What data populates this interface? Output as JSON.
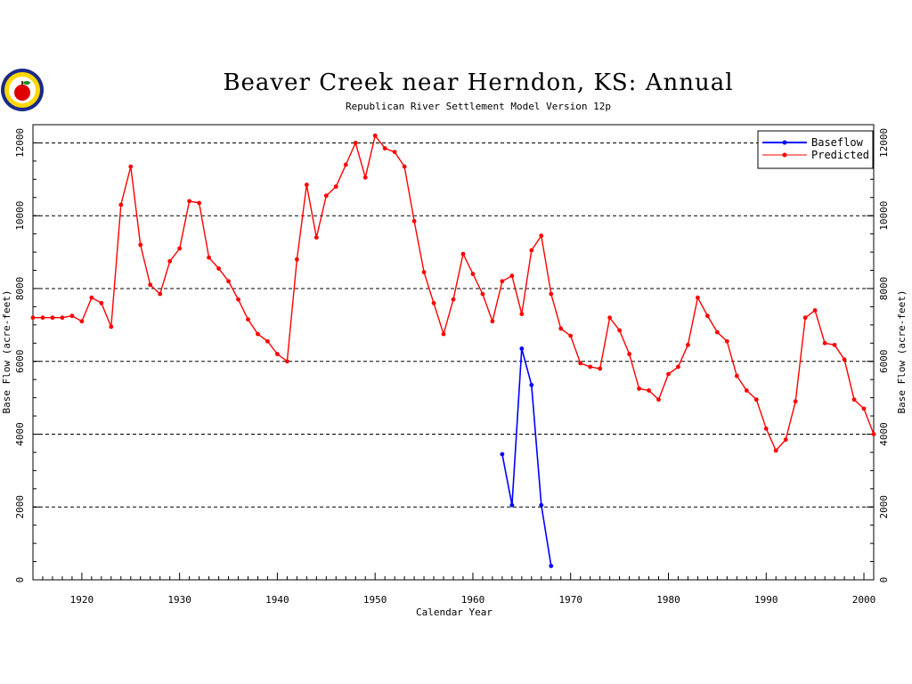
{
  "chart_data": {
    "type": "line",
    "title": "Beaver Creek near Herndon, KS: Annual",
    "subtitle": "Republican River Settlement Model Version 12p",
    "xlabel": "Calendar Year",
    "ylabel_left": "Base Flow (acre-feet)",
    "ylabel_right": "Base Flow (acre-feet)",
    "xlim": [
      1915,
      2001
    ],
    "ylim": [
      0,
      12500
    ],
    "xticks": [
      1920,
      1930,
      1940,
      1950,
      1960,
      1970,
      1980,
      1990,
      2000
    ],
    "yticks": [
      0,
      2000,
      4000,
      6000,
      8000,
      10000,
      12000
    ],
    "grid": "horizontal-dashed",
    "legend_position": "top-right",
    "series": [
      {
        "name": "Baseflow",
        "color": "#0000ff",
        "x": [
          1963,
          1964,
          1965,
          1966,
          1967,
          1968
        ],
        "y": [
          3450,
          2050,
          6350,
          5350,
          2050,
          380
        ]
      },
      {
        "name": "Predicted",
        "color": "#ff0000",
        "x": [
          1915,
          1916,
          1917,
          1918,
          1919,
          1920,
          1921,
          1922,
          1923,
          1924,
          1925,
          1926,
          1927,
          1928,
          1929,
          1930,
          1931,
          1932,
          1933,
          1934,
          1935,
          1936,
          1937,
          1938,
          1939,
          1940,
          1941,
          1942,
          1943,
          1944,
          1945,
          1946,
          1947,
          1948,
          1949,
          1950,
          1951,
          1952,
          1953,
          1954,
          1955,
          1956,
          1957,
          1958,
          1959,
          1960,
          1961,
          1962,
          1963,
          1964,
          1965,
          1966,
          1967,
          1968,
          1969,
          1970,
          1971,
          1972,
          1973,
          1974,
          1975,
          1976,
          1977,
          1978,
          1979,
          1980,
          1981,
          1982,
          1983,
          1984,
          1985,
          1986,
          1987,
          1988,
          1989,
          1990,
          1991,
          1992,
          1993,
          1994,
          1995,
          1996,
          1997,
          1998,
          1999,
          2000,
          2001
        ],
        "y": [
          7200,
          7200,
          7200,
          7200,
          7250,
          7100,
          7750,
          7600,
          6950,
          10300,
          11350,
          9200,
          8100,
          7850,
          8750,
          9100,
          10400,
          10350,
          8850,
          8550,
          8200,
          7700,
          7150,
          6750,
          6550,
          6200,
          6000,
          8800,
          10850,
          9400,
          10550,
          10800,
          11400,
          12000,
          11050,
          12200,
          11850,
          11750,
          11350,
          9850,
          8450,
          7600,
          6750,
          7700,
          8950,
          8400,
          7850,
          7100,
          8200,
          8350,
          7300,
          9050,
          9450,
          7850,
          6900,
          6700,
          5950,
          5850,
          5800,
          7200,
          6850,
          6200,
          5250,
          5200,
          4950,
          5650,
          5850,
          6450,
          7750,
          7250,
          6800,
          6550,
          5600,
          5200,
          4950,
          4150,
          3550,
          3850,
          4900,
          7200,
          7400,
          6500,
          6450,
          6050,
          4950,
          4700,
          4000
        ]
      }
    ]
  },
  "logo": {
    "name": "apple-seal-logo"
  }
}
